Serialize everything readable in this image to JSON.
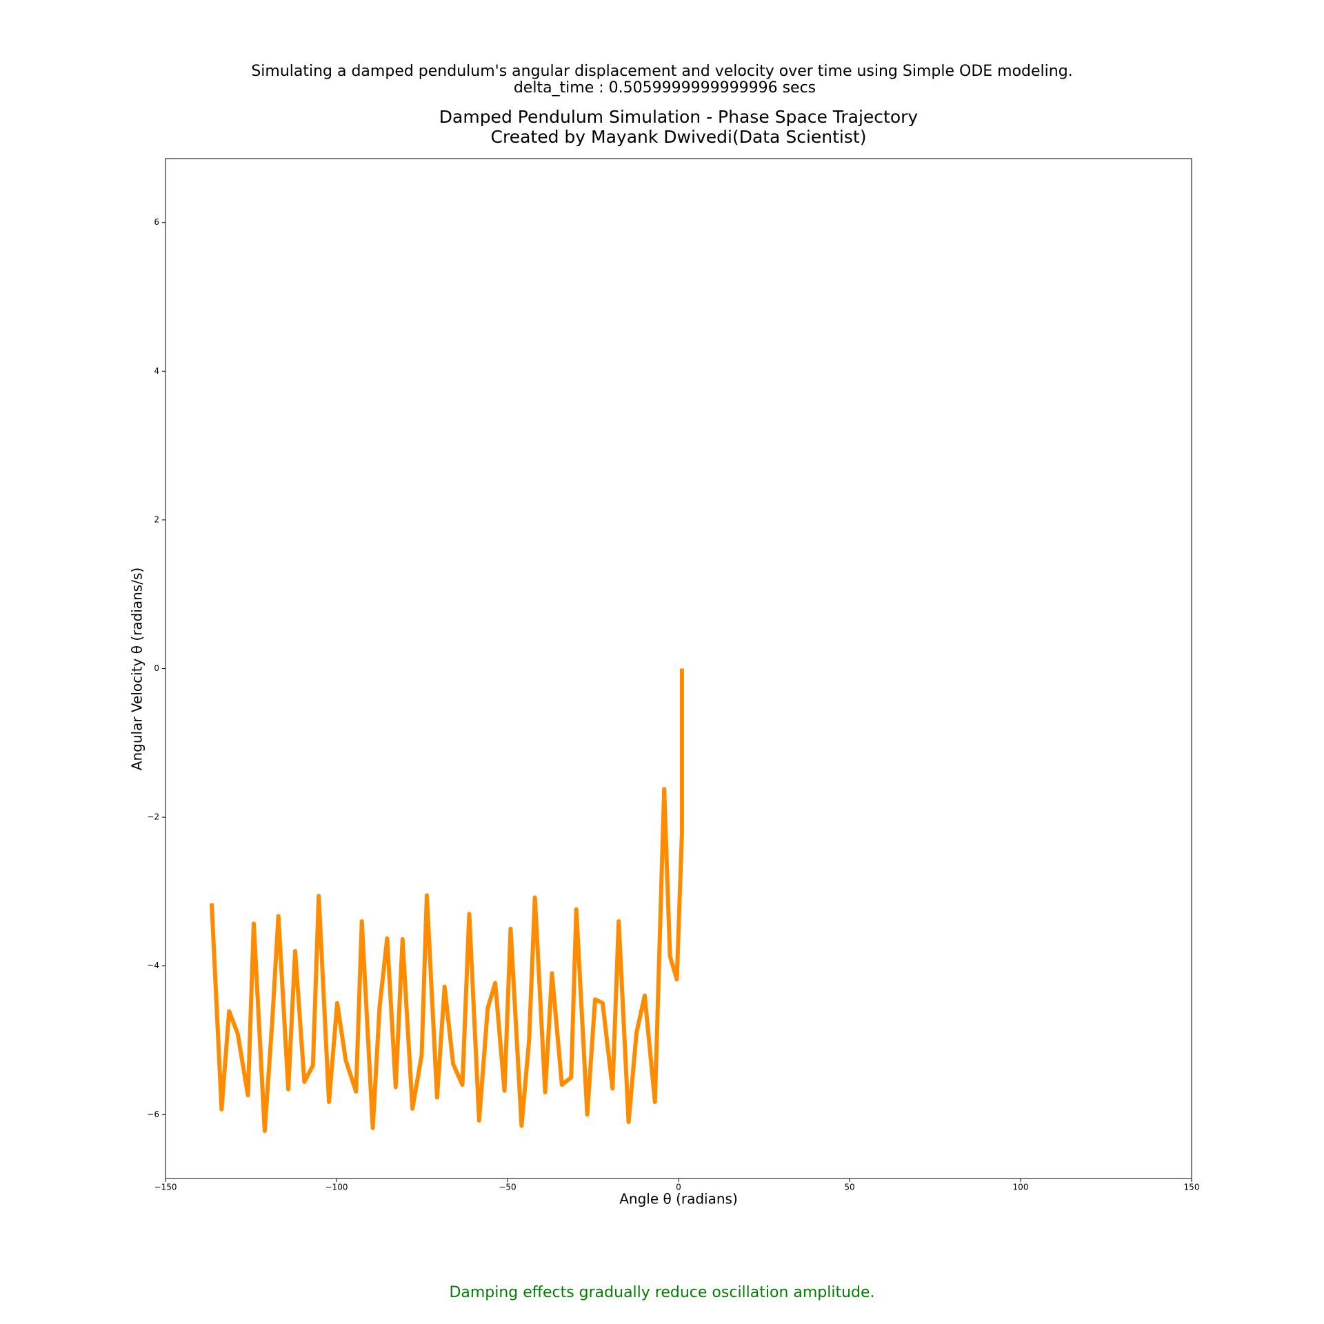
{
  "chart_data": {
    "type": "line",
    "suptitle": [
      "Simulating a damped pendulum's angular displacement and velocity over time using Simple ODE modeling.",
      "delta_time : 0.5059999999999996 secs"
    ],
    "title": [
      "Damped Pendulum Simulation - Phase Space Trajectory",
      "Created by Mayank Dwivedi(Data Scientist)"
    ],
    "xlabel": "Angle θ (radians)",
    "ylabel": "Angular Velocity θ (radians/s)",
    "annotation": "Damping effects gradually reduce oscillation amplitude.",
    "annotation_color": "green",
    "x": [
      1.0,
      1.0,
      -0.5,
      -2.5,
      -4.2,
      -6.9,
      -9.9,
      -12.3,
      -14.6,
      -17.5,
      -19.3,
      -22.2,
      -24.4,
      -26.7,
      -29.9,
      -31.4,
      -34.1,
      -37.0,
      -39.0,
      -42.0,
      -43.7,
      -45.9,
      -49.1,
      -50.9,
      -53.6,
      -55.8,
      -58.3,
      -61.2,
      -63.2,
      -65.9,
      -68.4,
      -70.6,
      -73.6,
      -75.1,
      -77.8,
      -80.7,
      -82.7,
      -85.2,
      -87.4,
      -89.4,
      -92.6,
      -94.3,
      -97.3,
      -99.8,
      -102.2,
      -105.2,
      -106.9,
      -109.4,
      -112.1,
      -114.1,
      -117.0,
      -118.8,
      -121.0,
      -124.2,
      -125.9,
      -128.9,
      -131.4,
      -133.6,
      -136.5
    ],
    "series": [
      {
        "color": "#ff8c00",
        "values": [
          0.0,
          -2.2,
          -4.18,
          -3.87,
          -1.62,
          -5.83,
          -4.4,
          -4.9,
          -6.1,
          -3.4,
          -5.65,
          -4.5,
          -4.45,
          -6.0,
          -3.24,
          -5.5,
          -5.6,
          -4.1,
          -5.7,
          -3.08,
          -5.0,
          -6.15,
          -3.5,
          -5.68,
          -4.23,
          -4.57,
          -6.08,
          -3.3,
          -5.6,
          -5.32,
          -4.28,
          -5.77,
          -3.05,
          -5.2,
          -5.92,
          -3.64,
          -5.63,
          -3.63,
          -4.55,
          -6.18,
          -3.4,
          -5.69,
          -5.27,
          -4.5,
          -5.83,
          -3.06,
          -5.34,
          -5.56,
          -3.8,
          -5.66,
          -3.33,
          -4.75,
          -6.22,
          -3.43,
          -5.74,
          -4.91,
          -4.61,
          -5.93,
          -3.16
        ]
      }
    ],
    "xlim": [
      -150,
      150
    ],
    "xticks": [
      {
        "value": -150,
        "label": "−150"
      },
      {
        "value": -100,
        "label": "−100"
      },
      {
        "value": -50,
        "label": "−50"
      },
      0,
      50,
      100,
      150
    ],
    "ylim": [
      -6.86,
      6.86
    ],
    "yticks": [
      {
        "value": -6,
        "label": "−6"
      },
      {
        "value": -4,
        "label": "−4"
      },
      {
        "value": -2,
        "label": "−2"
      },
      0,
      2,
      4,
      6
    ],
    "grid": false
  }
}
